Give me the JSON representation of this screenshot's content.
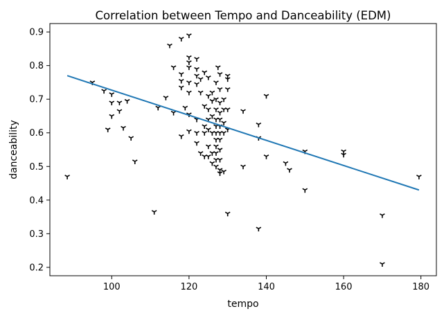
{
  "chart_data": {
    "type": "scatter",
    "title": "Correlation between Tempo and Danceability (EDM)",
    "xlabel": "tempo",
    "ylabel": "danceability",
    "xlim": [
      84,
      184
    ],
    "ylim": [
      0.175,
      0.925
    ],
    "xticks": [
      100,
      120,
      140,
      160,
      180
    ],
    "yticks": [
      0.2,
      0.3,
      0.4,
      0.5,
      0.6,
      0.7,
      0.8,
      0.9
    ],
    "xtick_labels": [
      "100",
      "120",
      "140",
      "160",
      "180"
    ],
    "ytick_labels": [
      "0.2",
      "0.3",
      "0.4",
      "0.5",
      "0.6",
      "0.7",
      "0.8",
      "0.9"
    ],
    "grid": false,
    "marker": "tri_down",
    "marker_color": "#000000",
    "regression_line": {
      "color": "#1f77b4",
      "points": [
        [
          88.5,
          0.77
        ],
        [
          179.5,
          0.43
        ]
      ]
    },
    "points": [
      [
        88.5,
        0.47
      ],
      [
        95,
        0.75
      ],
      [
        98,
        0.725
      ],
      [
        99,
        0.61
      ],
      [
        100,
        0.715
      ],
      [
        100,
        0.69
      ],
      [
        100,
        0.65
      ],
      [
        102,
        0.69
      ],
      [
        102,
        0.665
      ],
      [
        103,
        0.615
      ],
      [
        104,
        0.695
      ],
      [
        105,
        0.585
      ],
      [
        106,
        0.515
      ],
      [
        111,
        0.365
      ],
      [
        112,
        0.675
      ],
      [
        114,
        0.705
      ],
      [
        115,
        0.86
      ],
      [
        116,
        0.795
      ],
      [
        116,
        0.66
      ],
      [
        118,
        0.88
      ],
      [
        118,
        0.775
      ],
      [
        118,
        0.755
      ],
      [
        118,
        0.735
      ],
      [
        118,
        0.59
      ],
      [
        119,
        0.675
      ],
      [
        120,
        0.89
      ],
      [
        120,
        0.825
      ],
      [
        120,
        0.81
      ],
      [
        120,
        0.795
      ],
      [
        120,
        0.75
      ],
      [
        120,
        0.72
      ],
      [
        120,
        0.655
      ],
      [
        120,
        0.605
      ],
      [
        122,
        0.82
      ],
      [
        122,
        0.79
      ],
      [
        122,
        0.77
      ],
      [
        122,
        0.745
      ],
      [
        122,
        0.64
      ],
      [
        122,
        0.6
      ],
      [
        122,
        0.57
      ],
      [
        123,
        0.76
      ],
      [
        123,
        0.72
      ],
      [
        123,
        0.54
      ],
      [
        124,
        0.78
      ],
      [
        124,
        0.68
      ],
      [
        124,
        0.62
      ],
      [
        124,
        0.6
      ],
      [
        124,
        0.53
      ],
      [
        125,
        0.765
      ],
      [
        125,
        0.71
      ],
      [
        125,
        0.67
      ],
      [
        125,
        0.64
      ],
      [
        125,
        0.61
      ],
      [
        125,
        0.56
      ],
      [
        125,
        0.53
      ],
      [
        126,
        0.72
      ],
      [
        126,
        0.695
      ],
      [
        126,
        0.65
      ],
      [
        126,
        0.6
      ],
      [
        126,
        0.54
      ],
      [
        126,
        0.51
      ],
      [
        127,
        0.75
      ],
      [
        127,
        0.7
      ],
      [
        127,
        0.67
      ],
      [
        127,
        0.64
      ],
      [
        127,
        0.62
      ],
      [
        127,
        0.6
      ],
      [
        127,
        0.58
      ],
      [
        127,
        0.56
      ],
      [
        127,
        0.54
      ],
      [
        127,
        0.52
      ],
      [
        127,
        0.5
      ],
      [
        127.5,
        0.795
      ],
      [
        128,
        0.775
      ],
      [
        128,
        0.73
      ],
      [
        128,
        0.69
      ],
      [
        128,
        0.66
      ],
      [
        128,
        0.64
      ],
      [
        128,
        0.62
      ],
      [
        128,
        0.6
      ],
      [
        128,
        0.58
      ],
      [
        128,
        0.55
      ],
      [
        128,
        0.52
      ],
      [
        128,
        0.49
      ],
      [
        128,
        0.48
      ],
      [
        129,
        0.7
      ],
      [
        129,
        0.67
      ],
      [
        129,
        0.63
      ],
      [
        129,
        0.6
      ],
      [
        129,
        0.485
      ],
      [
        130,
        0.77
      ],
      [
        130,
        0.76
      ],
      [
        130,
        0.73
      ],
      [
        130,
        0.67
      ],
      [
        130,
        0.61
      ],
      [
        130,
        0.36
      ],
      [
        134,
        0.665
      ],
      [
        134,
        0.5
      ],
      [
        138,
        0.625
      ],
      [
        138,
        0.585
      ],
      [
        138,
        0.315
      ],
      [
        140,
        0.71
      ],
      [
        140,
        0.53
      ],
      [
        145,
        0.51
      ],
      [
        146,
        0.49
      ],
      [
        150,
        0.545
      ],
      [
        150,
        0.43
      ],
      [
        160,
        0.545
      ],
      [
        160,
        0.535
      ],
      [
        170,
        0.355
      ],
      [
        170,
        0.21
      ],
      [
        179.5,
        0.47
      ]
    ]
  }
}
